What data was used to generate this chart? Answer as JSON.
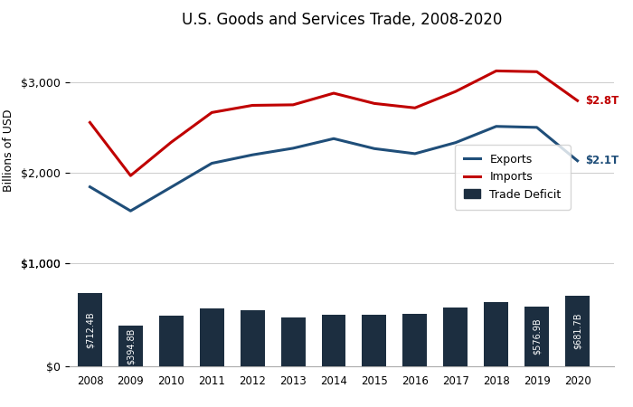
{
  "title": "U.S. Goods and Services Trade, 2008-2020",
  "years": [
    2008,
    2009,
    2010,
    2011,
    2012,
    2013,
    2014,
    2015,
    2016,
    2017,
    2018,
    2019,
    2020
  ],
  "exports": [
    1843,
    1578,
    1840,
    2103,
    2196,
    2269,
    2375,
    2265,
    2209,
    2331,
    2510,
    2499,
    2131
  ],
  "imports": [
    2553,
    1967,
    2335,
    2663,
    2742,
    2748,
    2876,
    2763,
    2714,
    2895,
    3122,
    3113,
    2794
  ],
  "deficit": [
    712.4,
    394.8,
    495,
    560,
    546,
    476,
    503,
    500,
    505,
    568,
    621,
    576.9,
    681.7
  ],
  "deficit_labels": [
    "$712.4B",
    "$394.8B",
    "",
    "",
    "",
    "",
    "",
    "",
    "",
    "",
    "",
    "$576.9B",
    "$681.7B"
  ],
  "export_label": "$2.1T",
  "import_label": "$2.8T",
  "export_color": "#1f4e79",
  "import_color": "#c00000",
  "bar_color": "#1c2e40",
  "ylabel": "Billions of USD",
  "line_ylim": [
    1000,
    3500
  ],
  "bar_ylim": [
    0,
    1000
  ],
  "line_yticks": [
    1000,
    2000,
    3000
  ],
  "bar_yticks": [
    0,
    1000
  ],
  "background_color": "#ffffff"
}
